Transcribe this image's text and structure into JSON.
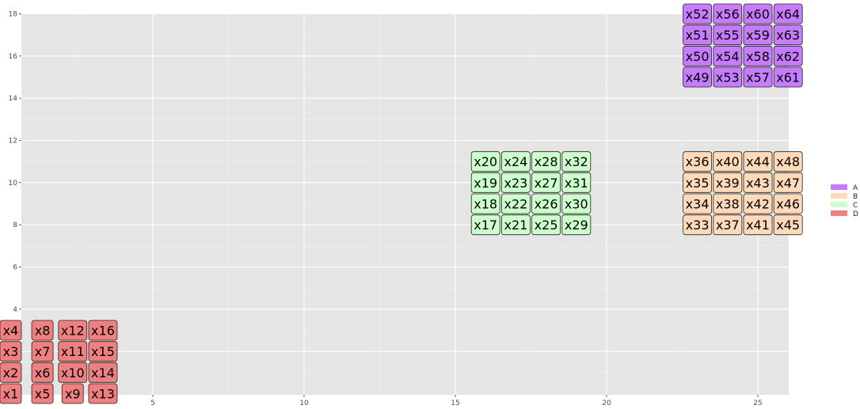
{
  "chart_data": {
    "type": "scatter",
    "title": "",
    "xlabel": "",
    "ylabel": "",
    "xlim": [
      0,
      26
    ],
    "ylim": [
      0,
      18
    ],
    "x_ticks": [
      5,
      10,
      15,
      20,
      25
    ],
    "y_ticks": [
      2,
      4,
      6,
      8,
      10,
      12,
      14,
      16,
      18
    ],
    "grid": true,
    "legend_position": "right",
    "groups": [
      {
        "name": "A",
        "color": "#c77cff"
      },
      {
        "name": "B",
        "color": "#ffdab9"
      },
      {
        "name": "C",
        "color": "#ccffcc"
      },
      {
        "name": "D",
        "color": "#f08080"
      }
    ],
    "points": [
      {
        "label": "x1",
        "x": 0.3,
        "y": 0,
        "group": "D"
      },
      {
        "label": "x2",
        "x": 0.3,
        "y": 1,
        "group": "D"
      },
      {
        "label": "x3",
        "x": 0.3,
        "y": 2,
        "group": "D"
      },
      {
        "label": "x4",
        "x": 0.3,
        "y": 3,
        "group": "D"
      },
      {
        "label": "x5",
        "x": 1.35,
        "y": 0,
        "group": "D"
      },
      {
        "label": "x6",
        "x": 1.35,
        "y": 1,
        "group": "D"
      },
      {
        "label": "x7",
        "x": 1.35,
        "y": 2,
        "group": "D"
      },
      {
        "label": "x8",
        "x": 1.35,
        "y": 3,
        "group": "D"
      },
      {
        "label": "x9",
        "x": 2.35,
        "y": 0,
        "group": "D"
      },
      {
        "label": "x10",
        "x": 2.35,
        "y": 1,
        "group": "D"
      },
      {
        "label": "x11",
        "x": 2.35,
        "y": 2,
        "group": "D"
      },
      {
        "label": "x12",
        "x": 2.35,
        "y": 3,
        "group": "D"
      },
      {
        "label": "x13",
        "x": 3.35,
        "y": 0,
        "group": "D"
      },
      {
        "label": "x14",
        "x": 3.35,
        "y": 1,
        "group": "D"
      },
      {
        "label": "x15",
        "x": 3.35,
        "y": 2,
        "group": "D"
      },
      {
        "label": "x16",
        "x": 3.35,
        "y": 3,
        "group": "D"
      },
      {
        "label": "x17",
        "x": 16,
        "y": 8,
        "group": "C"
      },
      {
        "label": "x18",
        "x": 16,
        "y": 9,
        "group": "C"
      },
      {
        "label": "x19",
        "x": 16,
        "y": 10,
        "group": "C"
      },
      {
        "label": "x20",
        "x": 16,
        "y": 11,
        "group": "C"
      },
      {
        "label": "x21",
        "x": 17,
        "y": 8,
        "group": "C"
      },
      {
        "label": "x22",
        "x": 17,
        "y": 9,
        "group": "C"
      },
      {
        "label": "x23",
        "x": 17,
        "y": 10,
        "group": "C"
      },
      {
        "label": "x24",
        "x": 17,
        "y": 11,
        "group": "C"
      },
      {
        "label": "x25",
        "x": 18,
        "y": 8,
        "group": "C"
      },
      {
        "label": "x26",
        "x": 18,
        "y": 9,
        "group": "C"
      },
      {
        "label": "x27",
        "x": 18,
        "y": 10,
        "group": "C"
      },
      {
        "label": "x28",
        "x": 18,
        "y": 11,
        "group": "C"
      },
      {
        "label": "x29",
        "x": 19,
        "y": 8,
        "group": "C"
      },
      {
        "label": "x30",
        "x": 19,
        "y": 9,
        "group": "C"
      },
      {
        "label": "x31",
        "x": 19,
        "y": 10,
        "group": "C"
      },
      {
        "label": "x32",
        "x": 19,
        "y": 11,
        "group": "C"
      },
      {
        "label": "x33",
        "x": 23,
        "y": 8,
        "group": "B"
      },
      {
        "label": "x34",
        "x": 23,
        "y": 9,
        "group": "B"
      },
      {
        "label": "x35",
        "x": 23,
        "y": 10,
        "group": "B"
      },
      {
        "label": "x36",
        "x": 23,
        "y": 11,
        "group": "B"
      },
      {
        "label": "x37",
        "x": 24,
        "y": 8,
        "group": "B"
      },
      {
        "label": "x38",
        "x": 24,
        "y": 9,
        "group": "B"
      },
      {
        "label": "x39",
        "x": 24,
        "y": 10,
        "group": "B"
      },
      {
        "label": "x40",
        "x": 24,
        "y": 11,
        "group": "B"
      },
      {
        "label": "x41",
        "x": 25,
        "y": 8,
        "group": "B"
      },
      {
        "label": "x42",
        "x": 25,
        "y": 9,
        "group": "B"
      },
      {
        "label": "x43",
        "x": 25,
        "y": 10,
        "group": "B"
      },
      {
        "label": "x44",
        "x": 25,
        "y": 11,
        "group": "B"
      },
      {
        "label": "x45",
        "x": 26,
        "y": 8,
        "group": "B"
      },
      {
        "label": "x46",
        "x": 26,
        "y": 9,
        "group": "B"
      },
      {
        "label": "x47",
        "x": 26,
        "y": 10,
        "group": "B"
      },
      {
        "label": "x48",
        "x": 26,
        "y": 11,
        "group": "B"
      },
      {
        "label": "x49",
        "x": 23,
        "y": 15,
        "group": "A"
      },
      {
        "label": "x50",
        "x": 23,
        "y": 16,
        "group": "A"
      },
      {
        "label": "x51",
        "x": 23,
        "y": 17,
        "group": "A"
      },
      {
        "label": "x52",
        "x": 23,
        "y": 18,
        "group": "A"
      },
      {
        "label": "x53",
        "x": 24,
        "y": 15,
        "group": "A"
      },
      {
        "label": "x54",
        "x": 24,
        "y": 16,
        "group": "A"
      },
      {
        "label": "x55",
        "x": 24,
        "y": 17,
        "group": "A"
      },
      {
        "label": "x56",
        "x": 24,
        "y": 18,
        "group": "A"
      },
      {
        "label": "x57",
        "x": 25,
        "y": 15,
        "group": "A"
      },
      {
        "label": "x58",
        "x": 25,
        "y": 16,
        "group": "A"
      },
      {
        "label": "x59",
        "x": 25,
        "y": 17,
        "group": "A"
      },
      {
        "label": "x60",
        "x": 25,
        "y": 18,
        "group": "A"
      },
      {
        "label": "x61",
        "x": 26,
        "y": 15,
        "group": "A"
      },
      {
        "label": "x62",
        "x": 26,
        "y": 16,
        "group": "A"
      },
      {
        "label": "x63",
        "x": 26,
        "y": 17,
        "group": "A"
      },
      {
        "label": "x64",
        "x": 26,
        "y": 18,
        "group": "A"
      }
    ]
  }
}
